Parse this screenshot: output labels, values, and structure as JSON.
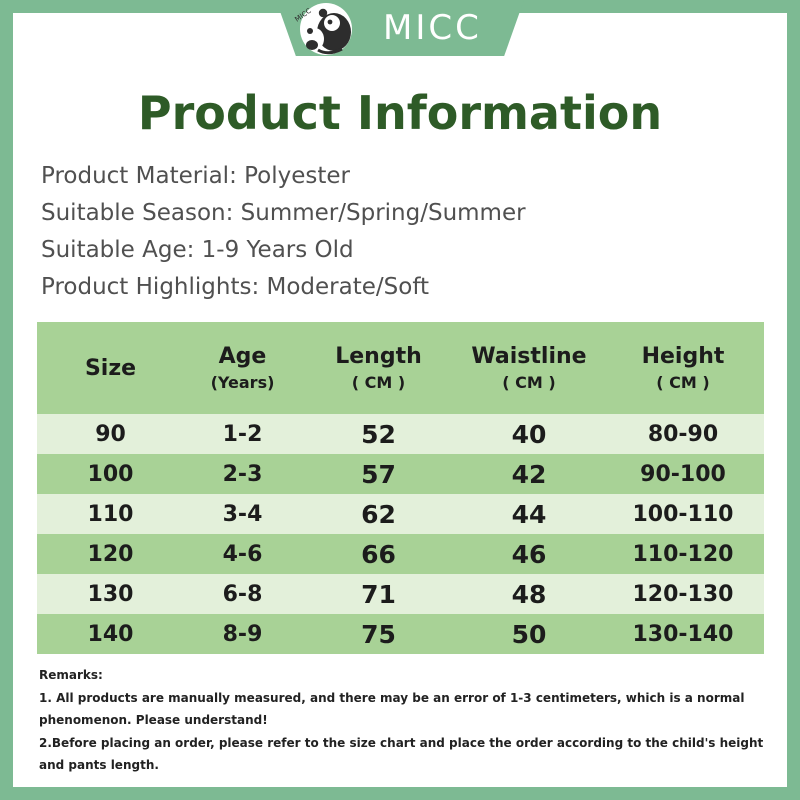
{
  "logo": {
    "brand": "MICC",
    "small_text": "MICC"
  },
  "title": "Product Information",
  "info": [
    "Product Material: Polyester",
    "Suitable Season: Summer/Spring/Summer",
    "Suitable Age: 1-9 Years Old",
    "Product Highlights: Moderate/Soft"
  ],
  "table": {
    "headers": [
      {
        "label": "Size",
        "sub": ""
      },
      {
        "label": "Age",
        "sub": "(Years)"
      },
      {
        "label": "Length",
        "sub": "( CM )"
      },
      {
        "label": "Waistline",
        "sub": "( CM )"
      },
      {
        "label": "Height",
        "sub": "( CM )"
      }
    ],
    "rows": [
      [
        "90",
        "1-2",
        "52",
        "40",
        "80-90"
      ],
      [
        "100",
        "2-3",
        "57",
        "42",
        "90-100"
      ],
      [
        "110",
        "3-4",
        "62",
        "44",
        "100-110"
      ],
      [
        "120",
        "4-6",
        "66",
        "46",
        "110-120"
      ],
      [
        "130",
        "6-8",
        "71",
        "48",
        "120-130"
      ],
      [
        "140",
        "8-9",
        "75",
        "50",
        "130-140"
      ]
    ]
  },
  "remarks": {
    "title": "Remarks:",
    "lines": [
      "1. All products are manually measured, and there may be an error of 1-3 centimeters, which is a normal phenomenon. Please understand!",
      "2.Before placing an order, please refer to the size chart and place the order according to the child's height and pants length."
    ]
  },
  "colors": {
    "frame": "#7dba93",
    "title": "#2e5b27",
    "header_row": "#a8d296",
    "light_row": "#e3f0da",
    "dark_row": "#a8d296"
  }
}
